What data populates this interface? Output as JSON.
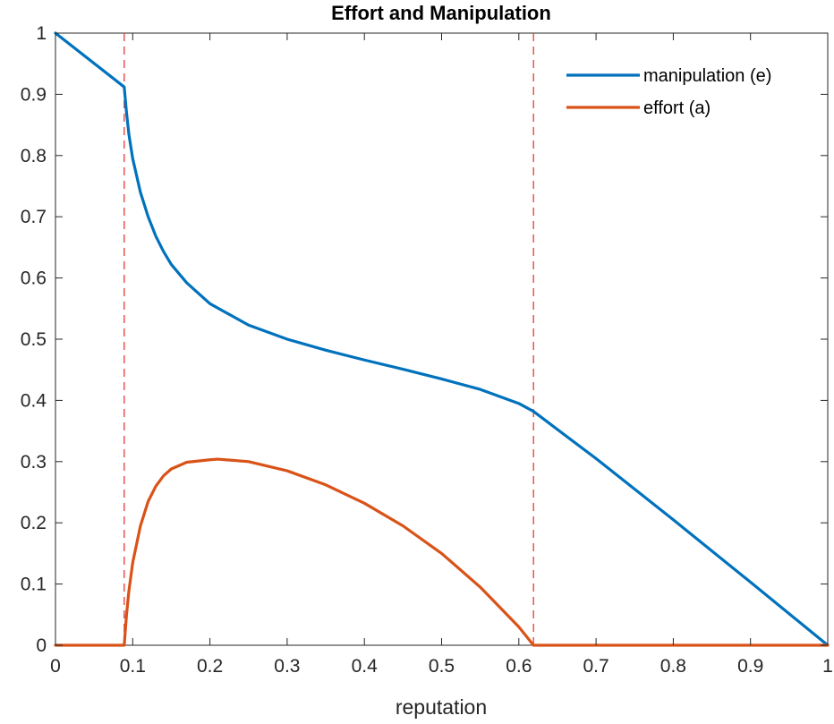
{
  "chart_data": {
    "type": "line",
    "title": "Effort and Manipulation",
    "xlabel": "reputation",
    "ylabel": "",
    "xlim": [
      0,
      1
    ],
    "ylim": [
      0,
      1
    ],
    "x_ticks": [
      "0",
      "0.1",
      "0.2",
      "0.3",
      "0.4",
      "0.5",
      "0.6",
      "0.7",
      "0.8",
      "0.9",
      "1"
    ],
    "y_ticks": [
      "0",
      "0.1",
      "0.2",
      "0.3",
      "0.4",
      "0.5",
      "0.6",
      "0.7",
      "0.8",
      "0.9",
      "1"
    ],
    "grid": false,
    "legend": "top-right",
    "vertical_lines": [
      {
        "x": 0.089,
        "style": "dashed",
        "color": "#e63a3a"
      },
      {
        "x": 0.619,
        "style": "dashed",
        "color": "#e63a3a"
      }
    ],
    "series": [
      {
        "name": "manipulation (e)",
        "color": "#0072bd",
        "points": [
          [
            0,
            1.0
          ],
          [
            0.089,
            0.912
          ],
          [
            0.092,
            0.87
          ],
          [
            0.095,
            0.835
          ],
          [
            0.1,
            0.795
          ],
          [
            0.11,
            0.74
          ],
          [
            0.12,
            0.7
          ],
          [
            0.13,
            0.668
          ],
          [
            0.14,
            0.643
          ],
          [
            0.15,
            0.622
          ],
          [
            0.17,
            0.592
          ],
          [
            0.2,
            0.558
          ],
          [
            0.25,
            0.523
          ],
          [
            0.3,
            0.5
          ],
          [
            0.35,
            0.482
          ],
          [
            0.4,
            0.466
          ],
          [
            0.45,
            0.451
          ],
          [
            0.5,
            0.435
          ],
          [
            0.55,
            0.418
          ],
          [
            0.6,
            0.395
          ],
          [
            0.619,
            0.382
          ],
          [
            0.7,
            0.305
          ],
          [
            0.8,
            0.205
          ],
          [
            0.9,
            0.103
          ],
          [
            1.0,
            0.0
          ]
        ]
      },
      {
        "name": "effort (a)",
        "color": "#d95319",
        "points": [
          [
            0,
            0.0
          ],
          [
            0.089,
            0.0
          ],
          [
            0.092,
            0.05
          ],
          [
            0.095,
            0.088
          ],
          [
            0.1,
            0.135
          ],
          [
            0.11,
            0.195
          ],
          [
            0.12,
            0.235
          ],
          [
            0.13,
            0.26
          ],
          [
            0.14,
            0.277
          ],
          [
            0.15,
            0.288
          ],
          [
            0.17,
            0.299
          ],
          [
            0.2,
            0.303
          ],
          [
            0.21,
            0.304
          ],
          [
            0.25,
            0.3
          ],
          [
            0.3,
            0.285
          ],
          [
            0.35,
            0.262
          ],
          [
            0.4,
            0.232
          ],
          [
            0.45,
            0.195
          ],
          [
            0.5,
            0.15
          ],
          [
            0.55,
            0.095
          ],
          [
            0.6,
            0.03
          ],
          [
            0.619,
            0.0
          ],
          [
            0.7,
            0.0
          ],
          [
            0.8,
            0.0
          ],
          [
            0.9,
            0.0
          ],
          [
            1.0,
            0.0
          ]
        ]
      }
    ]
  }
}
